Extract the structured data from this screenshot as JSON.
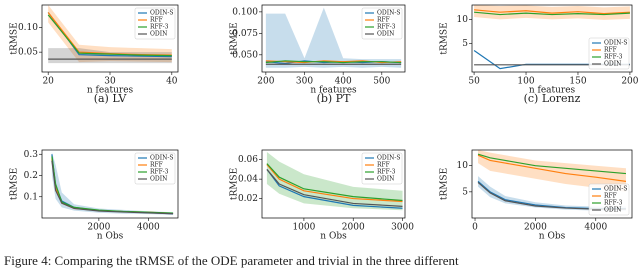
{
  "chart_data": [
    {
      "type": "line",
      "caption": "(a) LV",
      "xlabel": "n features",
      "ylabel": "tRMSE",
      "legend": "upper right",
      "x": [
        20,
        25,
        30,
        35,
        40
      ],
      "xlim": [
        19,
        41
      ],
      "xticks": [
        20,
        30,
        40
      ],
      "ylim": [
        0.01,
        0.145
      ],
      "yticks": [
        0.05,
        {
          "value": 0.1,
          "label": "0.10"
        }
      ],
      "series": [
        {
          "name": "ODIN-S",
          "color": "#1f77b4",
          "values": [
            0.13,
            0.045,
            0.043,
            0.042,
            0.041
          ]
        },
        {
          "name": "RFF",
          "color": "#ff7f0e",
          "values": [
            0.13,
            0.05,
            0.047,
            0.045,
            0.044
          ],
          "lower": [
            0.11,
            0.03,
            0.032,
            0.031,
            0.03
          ],
          "upper": [
            0.145,
            0.065,
            0.06,
            0.058,
            0.056
          ]
        },
        {
          "name": "RFF-3",
          "color": "#2ca02c",
          "values": [
            0.125,
            0.048,
            0.046,
            0.044,
            0.043
          ]
        },
        {
          "name": "ODIN",
          "color": "#555555",
          "values": [
            0.036,
            0.036,
            0.036,
            0.036,
            0.036
          ],
          "lower": [
            0.028,
            0.028,
            0.028,
            0.028,
            0.028
          ],
          "upper": [
            0.058,
            0.058,
            0.05,
            0.05,
            0.05
          ]
        }
      ]
    },
    {
      "type": "line",
      "caption": "(b) PT",
      "xlabel": "n features",
      "ylabel": "tRMSE",
      "legend": "upper right",
      "x": [
        200,
        250,
        300,
        350,
        400,
        450,
        500,
        550
      ],
      "xlim": [
        190,
        560
      ],
      "xticks": [
        200,
        300,
        400,
        500
      ],
      "ylim": [
        0.03,
        0.108
      ],
      "yticks": [
        {
          "value": 0.05,
          "label": "0.050"
        },
        {
          "value": 0.075,
          "label": "0.075"
        },
        {
          "value": 0.1,
          "label": "0.100"
        }
      ],
      "series": [
        {
          "name": "ODIN-S",
          "color": "#1f77b4",
          "values": [
            0.042,
            0.04,
            0.043,
            0.041,
            0.042,
            0.041,
            0.042,
            0.041
          ],
          "lower": [
            0.035,
            0.035,
            0.036,
            0.035,
            0.036,
            0.035,
            0.036,
            0.035
          ],
          "upper": [
            0.098,
            0.098,
            0.046,
            0.105,
            0.046,
            0.045,
            0.045,
            0.045
          ]
        },
        {
          "name": "RFF",
          "color": "#ff7f0e",
          "values": [
            0.043,
            0.042,
            0.041,
            0.043,
            0.042,
            0.043,
            0.041,
            0.042
          ]
        },
        {
          "name": "RFF-3",
          "color": "#2ca02c",
          "values": [
            0.041,
            0.043,
            0.042,
            0.042,
            0.041,
            0.042,
            0.042,
            0.041
          ]
        },
        {
          "name": "ODIN",
          "color": "#555555",
          "values": [
            0.039,
            0.039,
            0.039,
            0.039,
            0.039,
            0.039,
            0.039,
            0.039
          ]
        }
      ]
    },
    {
      "type": "line",
      "caption": "(c) Lorenz",
      "xlabel": "n features",
      "ylabel": "tRMSE",
      "legend": "lower right",
      "x": [
        50,
        75,
        100,
        125,
        150,
        175,
        200
      ],
      "xlim": [
        48,
        202
      ],
      "xticks": [
        50,
        100,
        150,
        200
      ],
      "ylim": [
        -1,
        13
      ],
      "yticks": [
        5,
        10
      ],
      "series": [
        {
          "name": "ODIN-S",
          "color": "#1f77b4",
          "values": [
            3.5,
            -0.3,
            0.6,
            0.6,
            0.6,
            0.6,
            0.6
          ]
        },
        {
          "name": "RFF",
          "color": "#ff7f0e",
          "values": [
            12,
            11.5,
            11.8,
            11.3,
            11.6,
            11.2,
            11.5
          ],
          "lower": [
            10.5,
            10,
            10.3,
            10,
            10.2,
            9.9,
            10.1
          ],
          "upper": [
            13,
            12.8,
            12.9,
            12.6,
            12.8,
            12.5,
            12.7
          ]
        },
        {
          "name": "RFF-3",
          "color": "#2ca02c",
          "values": [
            11.5,
            11,
            11.3,
            11,
            11.2,
            11,
            11.3
          ]
        },
        {
          "name": "ODIN",
          "color": "#555555",
          "values": [
            0.5,
            0.5,
            0.5,
            0.5,
            0.5,
            0.5,
            0.5
          ]
        }
      ]
    },
    {
      "type": "line",
      "xlabel": "n Obs",
      "ylabel": "tRMSE",
      "legend": "upper right",
      "x": [
        100,
        250,
        500,
        1000,
        2000,
        3000,
        4000,
        5000
      ],
      "xlim": [
        -300,
        5200
      ],
      "xticks": [
        2000,
        4000
      ],
      "ylim": [
        0,
        0.32
      ],
      "yticks": [
        0.1,
        0.2,
        0.3
      ],
      "series": [
        {
          "name": "ODIN-S",
          "color": "#1f77b4",
          "values": [
            0.3,
            0.15,
            0.08,
            0.05,
            0.035,
            0.03,
            0.025,
            0.02
          ],
          "lower": [
            0.2,
            0.09,
            0.05,
            0.035,
            0.025,
            0.02,
            0.018,
            0.015
          ],
          "upper": [
            0.31,
            0.25,
            0.12,
            0.065,
            0.045,
            0.038,
            0.032,
            0.027
          ]
        },
        {
          "name": "RFF",
          "color": "#ff7f0e",
          "values": [
            0.28,
            0.14,
            0.07,
            0.045,
            0.035,
            0.03,
            0.027,
            0.022
          ]
        },
        {
          "name": "RFF-3",
          "color": "#2ca02c",
          "values": [
            0.29,
            0.16,
            0.075,
            0.05,
            0.037,
            0.031,
            0.027,
            0.023
          ]
        },
        {
          "name": "ODIN",
          "color": "#555555",
          "values": [
            0.27,
            0.13,
            0.07,
            0.045,
            0.033,
            0.028,
            0.024,
            0.02
          ]
        }
      ]
    },
    {
      "type": "line",
      "xlabel": "n Obs",
      "ylabel": "tRMSE",
      "legend": "upper right",
      "x": [
        250,
        500,
        1000,
        2000,
        3000
      ],
      "xlim": [
        150,
        3050
      ],
      "xticks": [
        1000,
        2000,
        3000
      ],
      "ylim": [
        0,
        0.07
      ],
      "yticks": [
        0.02,
        0.04,
        0.06
      ],
      "series": [
        {
          "name": "ODIN-S",
          "color": "#1f77b4",
          "values": [
            0.05,
            0.033,
            0.022,
            0.013,
            0.01
          ]
        },
        {
          "name": "RFF",
          "color": "#ff7f0e",
          "values": [
            0.055,
            0.04,
            0.028,
            0.02,
            0.017
          ]
        },
        {
          "name": "RFF-3",
          "color": "#2ca02c",
          "values": [
            0.056,
            0.042,
            0.03,
            0.022,
            0.018
          ],
          "lower": [
            0.035,
            0.025,
            0.015,
            0.01,
            0.008
          ],
          "upper": [
            0.068,
            0.058,
            0.045,
            0.032,
            0.028
          ]
        },
        {
          "name": "ODIN",
          "color": "#555555",
          "values": [
            0.05,
            0.035,
            0.024,
            0.015,
            0.012
          ]
        }
      ]
    },
    {
      "type": "line",
      "xlabel": "n Obs",
      "ylabel": "tRMSE",
      "legend": "lower right",
      "x": [
        100,
        500,
        1000,
        2000,
        3000,
        4000,
        5000
      ],
      "xlim": [
        -100,
        5200
      ],
      "xticks": [
        0,
        2000,
        4000
      ],
      "ylim": [
        0,
        13
      ],
      "yticks": [
        5,
        10
      ],
      "series": [
        {
          "name": "ODIN-S",
          "color": "#1f77b4",
          "values": [
            7,
            5,
            3.5,
            2.5,
            2,
            1.8,
            1.8
          ],
          "lower": [
            6,
            4,
            2.8,
            2,
            1.6,
            1.4,
            1.4
          ],
          "upper": [
            8,
            6,
            4.2,
            3,
            2.4,
            2.2,
            2.2
          ]
        },
        {
          "name": "RFF",
          "color": "#ff7f0e",
          "values": [
            12,
            11,
            10.5,
            9.5,
            8.5,
            7.8,
            7
          ],
          "lower": [
            10.5,
            9,
            8.5,
            7.5,
            6.5,
            5.8,
            5
          ],
          "upper": [
            13,
            12.5,
            12,
            11,
            10.5,
            10,
            9.5
          ]
        },
        {
          "name": "RFF-3",
          "color": "#2ca02c",
          "values": [
            12.2,
            11.5,
            11,
            10,
            9.5,
            9,
            8.5
          ]
        },
        {
          "name": "ODIN",
          "color": "#555555",
          "values": [
            6.8,
            4.8,
            3.3,
            2.3,
            1.9,
            1.7,
            1.7
          ]
        }
      ]
    }
  ],
  "figure_caption": "Figure 4: Comparing the tRMSE of the ODE parameter and trivial in the three different"
}
